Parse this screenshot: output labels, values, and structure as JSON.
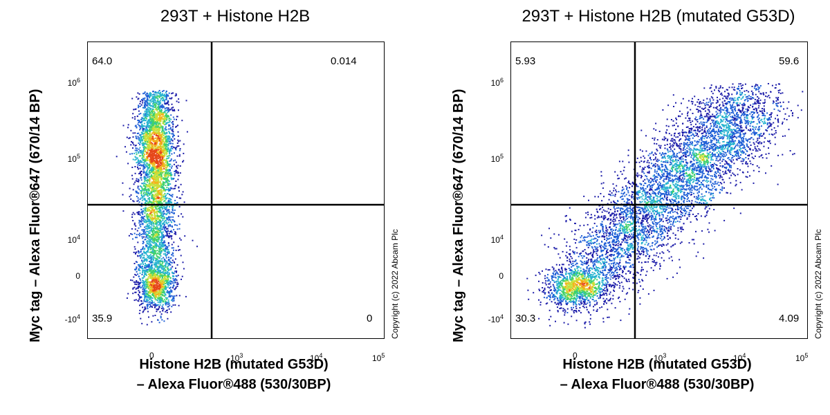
{
  "chart_data": [
    {
      "type": "scatter",
      "title": "293T + Histone H2B",
      "xlabel_line1": "Histone H2B (mutated G53D)",
      "xlabel_line2": "– Alexa Fluor®488 (530/30BP)",
      "ylabel": "Myc tag – Alexa Fluor®647 (670/14 BP)",
      "x_ticks": [
        {
          "base": "0",
          "exp": ""
        },
        {
          "base": "10",
          "exp": "3"
        },
        {
          "base": "10",
          "exp": "4"
        },
        {
          "base": "10",
          "exp": "5"
        }
      ],
      "y_ticks": [
        {
          "base": "-10",
          "exp": "4"
        },
        {
          "base": "0",
          "exp": ""
        },
        {
          "base": "10",
          "exp": "4"
        },
        {
          "base": "10",
          "exp": "5"
        },
        {
          "base": "10",
          "exp": "6"
        }
      ],
      "quadrants": {
        "upper_left": "64.0",
        "upper_right": "0.014",
        "lower_left": "35.9",
        "lower_right": "0"
      },
      "population": "vertical",
      "copyright": "Copyright (c) 2022 Abcam Plc"
    },
    {
      "type": "scatter",
      "title": "293T + Histone H2B (mutated G53D)",
      "xlabel_line1": "Histone H2B (mutated G53D)",
      "xlabel_line2": "– Alexa Fluor®488 (530/30BP)",
      "ylabel": "Myc tag – Alexa Fluor®647 (670/14 BP)",
      "x_ticks": [
        {
          "base": "0",
          "exp": ""
        },
        {
          "base": "10",
          "exp": "3"
        },
        {
          "base": "10",
          "exp": "4"
        },
        {
          "base": "10",
          "exp": "5"
        }
      ],
      "y_ticks": [
        {
          "base": "-10",
          "exp": "4"
        },
        {
          "base": "0",
          "exp": ""
        },
        {
          "base": "10",
          "exp": "4"
        },
        {
          "base": "10",
          "exp": "5"
        },
        {
          "base": "10",
          "exp": "6"
        }
      ],
      "quadrants": {
        "upper_left": "5.93",
        "upper_right": "59.6",
        "lower_left": "30.3",
        "lower_right": "4.09"
      },
      "population": "diagonal",
      "copyright": "Copyright (c) 2022 Abcam Plc"
    }
  ]
}
